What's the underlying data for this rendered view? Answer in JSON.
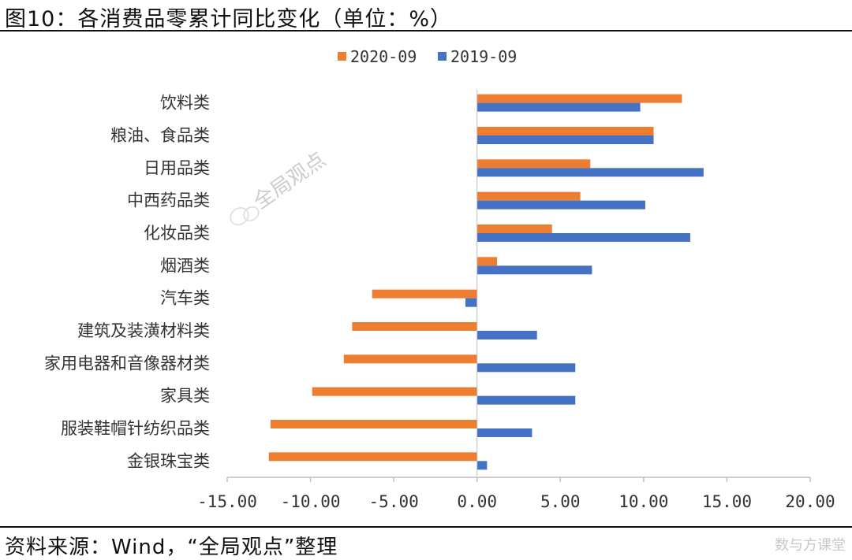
{
  "title": "图10：各消费品零累计同比变化（单位：%）",
  "source": "资料来源：Wind，“全局观点”整理",
  "watermark": "全局观点",
  "corner_watermark": "数与方课堂",
  "colors": {
    "series_2020": "#ED7D31",
    "series_2019": "#4472C4",
    "axis": "#BFBFBF"
  },
  "chart_data": {
    "type": "bar",
    "orientation": "horizontal",
    "categories": [
      "饮料类",
      "粮油、食品类",
      "日用品类",
      "中西药品类",
      "化妆品类",
      "烟酒类",
      "汽车类",
      "建筑及装潢材料类",
      "家用电器和音像器材类",
      "家具类",
      "服装鞋帽针纺织品类",
      "金银珠宝类"
    ],
    "series": [
      {
        "name": "2020-09",
        "values": [
          12.3,
          10.6,
          6.8,
          6.2,
          4.5,
          1.2,
          -6.3,
          -7.5,
          -8.0,
          -9.9,
          -12.4,
          -12.5
        ]
      },
      {
        "name": "2019-09",
        "values": [
          9.8,
          10.6,
          13.6,
          10.1,
          12.8,
          6.9,
          -0.7,
          3.6,
          5.9,
          5.9,
          3.3,
          0.6
        ]
      }
    ],
    "xlim": [
      -15,
      20
    ],
    "xticks": [
      "-15.00",
      "-10.00",
      "-5.00",
      "0.00",
      "5.00",
      "10.00",
      "15.00",
      "20.00"
    ],
    "legend": "top-center",
    "grid": false
  }
}
